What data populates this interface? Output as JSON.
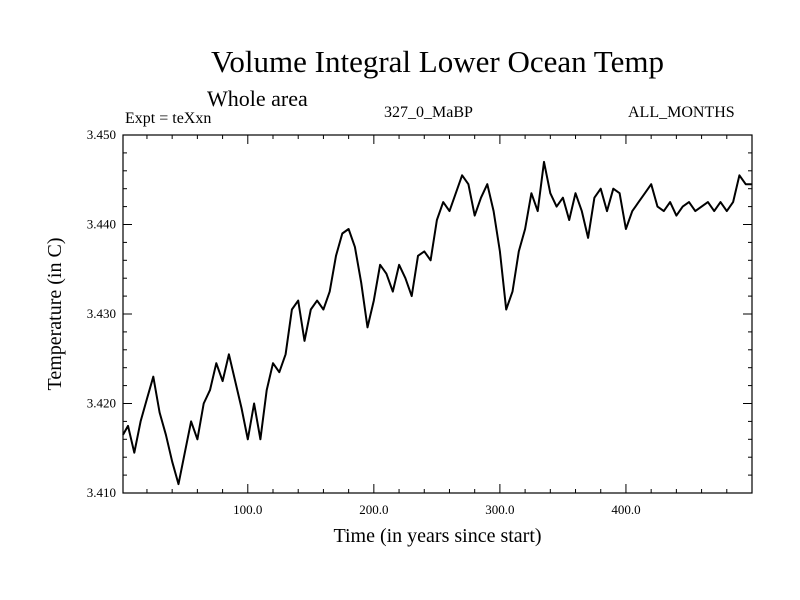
{
  "header": {
    "title": "Volume Integral Lower Ocean Temp",
    "subtitle": "Whole area",
    "experiment": "Expt = teXxn",
    "case_id": "327_0_MaBP",
    "months": "ALL_MONTHS"
  },
  "chart_data": {
    "type": "line",
    "title": "Volume Integral Lower Ocean Temp",
    "subtitle": "Whole area",
    "xlabel": "Time (in years since start)",
    "ylabel": "Temperature (in C)",
    "xlim": [
      1,
      500
    ],
    "ylim": [
      3.41,
      3.45
    ],
    "x_ticks": [
      100,
      200,
      300,
      400
    ],
    "x_tick_labels": [
      "100.0",
      "200.0",
      "300.0",
      "400.0"
    ],
    "y_ticks": [
      3.41,
      3.42,
      3.43,
      3.44,
      3.45
    ],
    "y_tick_labels": [
      "3.410",
      "3.420",
      "3.430",
      "3.440",
      "3.450"
    ],
    "color": "#000000",
    "series": [
      {
        "name": "Volume Integral Lower Ocean Temp",
        "x": [
          1,
          5,
          10,
          15,
          20,
          25,
          30,
          35,
          40,
          45,
          50,
          55,
          60,
          65,
          70,
          75,
          80,
          85,
          90,
          95,
          100,
          105,
          110,
          115,
          120,
          125,
          130,
          135,
          140,
          145,
          150,
          155,
          160,
          165,
          170,
          175,
          180,
          185,
          190,
          195,
          200,
          205,
          210,
          215,
          220,
          225,
          230,
          235,
          240,
          245,
          250,
          255,
          260,
          265,
          270,
          275,
          280,
          285,
          290,
          295,
          300,
          305,
          310,
          315,
          320,
          325,
          330,
          335,
          340,
          345,
          350,
          355,
          360,
          365,
          370,
          375,
          380,
          385,
          390,
          395,
          400,
          405,
          410,
          415,
          420,
          425,
          430,
          435,
          440,
          445,
          450,
          455,
          460,
          465,
          470,
          475,
          480,
          485,
          490,
          495,
          500
        ],
        "values": [
          3.4165,
          3.4175,
          3.4145,
          3.418,
          3.4205,
          3.423,
          3.419,
          3.4165,
          3.4135,
          3.411,
          3.4145,
          3.418,
          3.416,
          3.42,
          3.4215,
          3.4245,
          3.4225,
          3.4255,
          3.4225,
          3.4195,
          3.416,
          3.42,
          3.416,
          3.4215,
          3.4245,
          3.4235,
          3.4255,
          3.4305,
          3.4315,
          3.427,
          3.4305,
          3.4315,
          3.4305,
          3.4325,
          3.4365,
          3.439,
          3.4395,
          3.4375,
          3.4335,
          3.4285,
          3.4315,
          3.4355,
          3.4345,
          3.4325,
          3.4355,
          3.434,
          3.432,
          3.4365,
          3.437,
          3.436,
          3.4405,
          3.4425,
          3.4415,
          3.4435,
          3.4455,
          3.4445,
          3.441,
          3.443,
          3.4445,
          3.4415,
          3.437,
          3.4305,
          3.4325,
          3.437,
          3.4395,
          3.4435,
          3.4415,
          3.447,
          3.4435,
          3.442,
          3.443,
          3.4405,
          3.4435,
          3.4415,
          3.4385,
          3.443,
          3.444,
          3.4415,
          3.444,
          3.4435,
          3.4395,
          3.4415,
          3.4425,
          3.4435,
          3.4445,
          3.442,
          3.4415,
          3.4425,
          3.441,
          3.442,
          3.4425,
          3.4415,
          3.442,
          3.4425,
          3.4415,
          3.4425,
          3.4415,
          3.4425,
          3.4455,
          3.4445,
          3.4445
        ]
      }
    ]
  }
}
